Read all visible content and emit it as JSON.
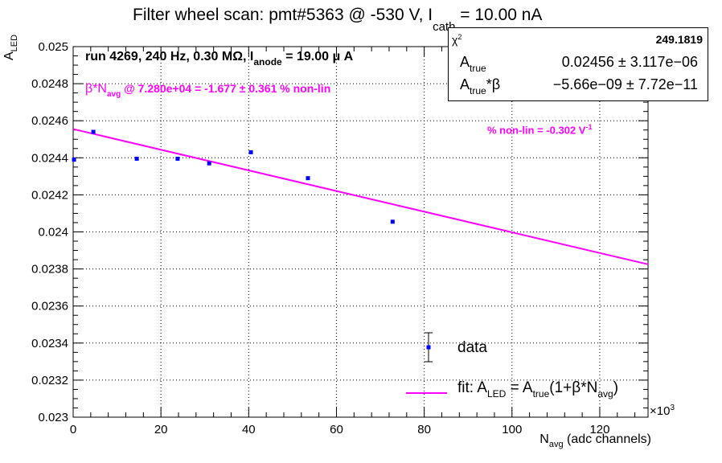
{
  "title": {
    "main": "Filter wheel scan: pmt#5363 @  -530 V, I",
    "sub": "cath",
    "tail": " = 10.00 nA"
  },
  "axes": {
    "ylabel": "A",
    "ylabel_sub": "LED",
    "xlabel": "N",
    "xlabel_sub": "avg",
    "xlabel_tail": " (adc channels)",
    "x_multiplier": "×10",
    "x_multiplier_exp": "3"
  },
  "annotations": {
    "run_info": "run 4269, 240 Hz, 0.30 MΩ, I",
    "run_info_sub": "anode",
    "run_info_tail": " = 19.00 μ A",
    "beta_prefix": "β*N",
    "beta_sub": "avg",
    "beta_tail": " @ 7.280e+04 = -1.677 ± 0.361 % non-lin",
    "nonlin": "% non-lin = -0.302 V",
    "nonlin_exp": "-1"
  },
  "stats_box": {
    "chi_label": "χ",
    "chi_exp": "2",
    "chi_value": "249.1819",
    "row1_label": "A",
    "row1_label_sub": "true",
    "row1_value": "0.02456 ± 3.117e−06",
    "row2_label": "A",
    "row2_label_sub": "true",
    "row2_label_tail": "*β",
    "row2_value": "−5.66e−09 ± 7.72e−11"
  },
  "legend": {
    "data_label": "data",
    "fit_prefix": "fit: A",
    "fit_sub1": "LED",
    "fit_mid": " = A",
    "fit_sub2": "true",
    "fit_mid2": "(1+β*N",
    "fit_sub3": "avg",
    "fit_tail": ")"
  },
  "colors": {
    "data": "#0000ff",
    "fit": "#ff00ff",
    "grid": "#000000"
  },
  "chart_data": {
    "type": "scatter",
    "title": "Filter wheel scan: pmt#5363 @  -530 V, I_cath = 10.00 nA",
    "xlabel": "N_avg (adc channels)",
    "ylabel": "A_LED",
    "xlim": [
      0,
      131
    ],
    "ylim": [
      0.023,
      0.025
    ],
    "x_scale_note": "×10^3",
    "x_ticks": [
      0,
      20,
      40,
      60,
      80,
      100,
      120
    ],
    "x_tick_labels": [
      "0",
      "20",
      "40",
      "60",
      "80",
      "100",
      "120"
    ],
    "y_ticks": [
      0.023,
      0.0232,
      0.0234,
      0.0236,
      0.0238,
      0.024,
      0.0242,
      0.0244,
      0.0246,
      0.0248,
      0.025
    ],
    "y_tick_labels": [
      "0.023",
      "0.0232",
      "0.0234",
      "0.0236",
      "0.0238",
      "0.024",
      "0.0242",
      "0.0244",
      "0.0246",
      "0.0248",
      "0.025"
    ],
    "grid": true,
    "series": [
      {
        "name": "data",
        "type": "scatter",
        "x": [
          0.2,
          4.6,
          14.5,
          23.8,
          31.0,
          40.5,
          53.5,
          72.8
        ],
        "y": [
          0.02439,
          0.02454,
          0.024395,
          0.024395,
          0.02437,
          0.02443,
          0.02429,
          0.024055
        ]
      },
      {
        "name": "fit: A_LED = A_true(1+β*N_avg)",
        "type": "line",
        "x": [
          0,
          131
        ],
        "y": [
          0.024555,
          0.023825
        ]
      }
    ],
    "legend_placement": "bottom-right"
  }
}
